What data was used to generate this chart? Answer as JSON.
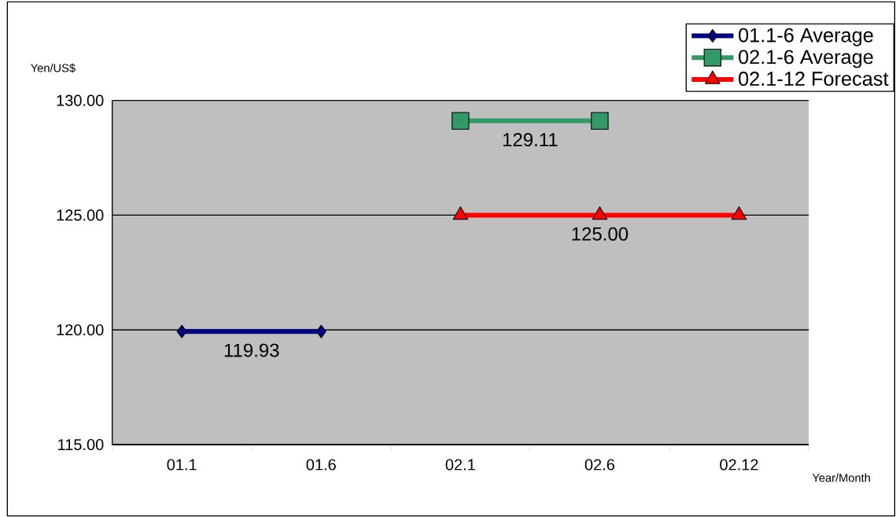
{
  "chart_data": {
    "type": "line",
    "categories": [
      "01.1",
      "01.6",
      "02.1",
      "02.6",
      "02.12"
    ],
    "series": [
      {
        "name": "01.1-6 Average",
        "color": "#000080",
        "marker": "diamond",
        "values": [
          119.93,
          119.93,
          null,
          null,
          null
        ]
      },
      {
        "name": "02.1-6 Average",
        "color": "#339966",
        "marker": "square",
        "values": [
          null,
          null,
          129.11,
          129.11,
          null
        ]
      },
      {
        "name": "02.1-12 Forecast",
        "color": "#ff0000",
        "marker": "triangle",
        "values": [
          null,
          null,
          125,
          125,
          125
        ]
      }
    ],
    "annotations": [
      "119.93",
      "129.11",
      {
        "text": "125.00",
        "x": "02.6",
        "y": 125
      }
    ],
    "ylim": [
      115,
      130
    ],
    "yticks": [
      {
        "value": 115,
        "label": "115.00"
      },
      {
        "value": 120,
        "label": "120.00"
      },
      {
        "value": 125,
        "label": "125.00"
      },
      {
        "value": 130,
        "label": "130.00"
      }
    ],
    "ylabel": "Yen/US$",
    "xlabel": "Year/Month",
    "grid": "y",
    "legend": "top right",
    "line_style": "solid"
  }
}
